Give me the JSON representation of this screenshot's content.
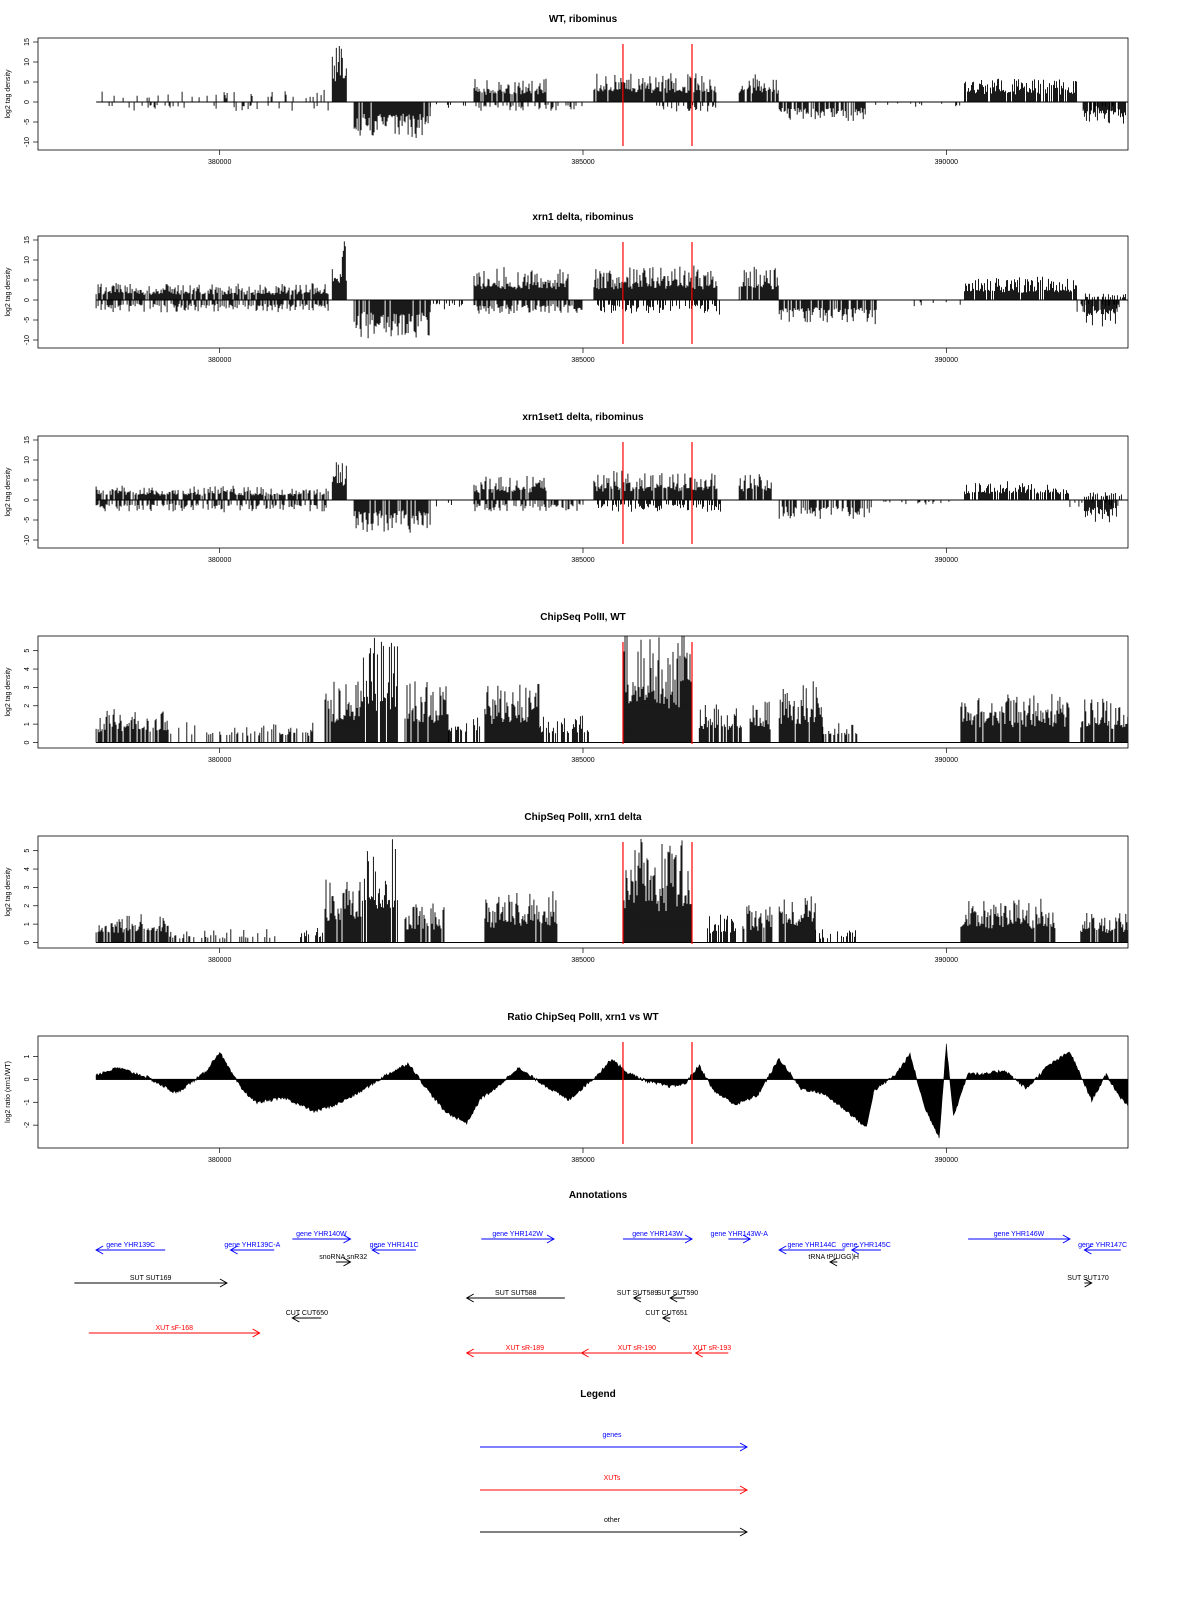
{
  "chart_data": [
    {
      "type": "bar",
      "title": "WT, ribominus",
      "ylabel": "log2 tag density",
      "ylim": [
        -12,
        16
      ],
      "yticks": [
        -10,
        -5,
        0,
        5,
        10,
        15
      ],
      "xlim": [
        377500,
        392500
      ],
      "xticks": [
        380000,
        385000,
        390000
      ],
      "markers_x": [
        385550,
        386500
      ],
      "marker_color": "#ff0000",
      "baseline": 0,
      "segments": [
        {
          "from": 378300,
          "to": 381500,
          "dir": 1,
          "level": 2.5,
          "density": 0.18
        },
        {
          "from": 378300,
          "to": 381500,
          "dir": -1,
          "level": 2,
          "density": 0.12
        },
        {
          "from": 381550,
          "to": 381750,
          "dir": 1,
          "level": 12,
          "density": 1
        },
        {
          "from": 381850,
          "to": 382900,
          "dir": -1,
          "level": 8,
          "density": 0.9
        },
        {
          "from": 382900,
          "to": 383400,
          "dir": -1,
          "level": 1.5,
          "density": 0.1
        },
        {
          "from": 383500,
          "to": 384500,
          "dir": 1,
          "level": 5,
          "density": 0.9
        },
        {
          "from": 383500,
          "to": 385000,
          "dir": -1,
          "level": 2,
          "density": 0.3
        },
        {
          "from": 385150,
          "to": 386850,
          "dir": 1,
          "level": 6,
          "density": 0.95
        },
        {
          "from": 386000,
          "to": 386900,
          "dir": -1,
          "level": 2,
          "density": 0.3
        },
        {
          "from": 387150,
          "to": 387700,
          "dir": 1,
          "level": 6,
          "density": 0.9
        },
        {
          "from": 387700,
          "to": 388900,
          "dir": -1,
          "level": 4,
          "density": 0.7
        },
        {
          "from": 389000,
          "to": 390200,
          "dir": -1,
          "level": 1,
          "density": 0.1
        },
        {
          "from": 390250,
          "to": 391800,
          "dir": 1,
          "level": 5,
          "density": 0.9
        },
        {
          "from": 391800,
          "to": 392400,
          "dir": -1,
          "level": 2,
          "density": 0.3
        },
        {
          "from": 392500,
          "to": 392300,
          "dir": -1,
          "level": 5,
          "density": 0.9
        },
        {
          "from": 391900,
          "to": 392300,
          "dir": -1,
          "level": 5,
          "density": 0.9
        }
      ]
    },
    {
      "type": "bar",
      "title": "xrn1 delta, ribominus",
      "ylabel": "log2 tag density",
      "ylim": [
        -12,
        16
      ],
      "yticks": [
        -10,
        -5,
        0,
        5,
        10,
        15
      ],
      "xlim": [
        377500,
        392500
      ],
      "xticks": [
        380000,
        385000,
        390000
      ],
      "markers_x": [
        385550,
        386500
      ],
      "marker_color": "#ff0000",
      "baseline": 0,
      "segments": [
        {
          "from": 378300,
          "to": 381500,
          "dir": 1,
          "level": 3.5,
          "density": 0.9
        },
        {
          "from": 378300,
          "to": 381500,
          "dir": -1,
          "level": 2.5,
          "density": 0.6
        },
        {
          "from": 381550,
          "to": 381750,
          "dir": 1,
          "level": 12,
          "density": 1
        },
        {
          "from": 381850,
          "to": 382900,
          "dir": -1,
          "level": 8,
          "density": 0.9
        },
        {
          "from": 382900,
          "to": 383400,
          "dir": -1,
          "level": 2,
          "density": 0.4
        },
        {
          "from": 383500,
          "to": 384800,
          "dir": 1,
          "level": 7,
          "density": 1
        },
        {
          "from": 383500,
          "to": 385000,
          "dir": -1,
          "level": 3,
          "density": 0.7
        },
        {
          "from": 385150,
          "to": 386850,
          "dir": 1,
          "level": 7,
          "density": 1
        },
        {
          "from": 385200,
          "to": 386900,
          "dir": -1,
          "level": 3,
          "density": 0.6
        },
        {
          "from": 387150,
          "to": 387700,
          "dir": 1,
          "level": 7,
          "density": 0.95
        },
        {
          "from": 387700,
          "to": 389100,
          "dir": -1,
          "level": 5,
          "density": 0.8
        },
        {
          "from": 389200,
          "to": 390200,
          "dir": -1,
          "level": 1.5,
          "density": 0.15
        },
        {
          "from": 390250,
          "to": 391800,
          "dir": 1,
          "level": 5,
          "density": 0.95
        },
        {
          "from": 391800,
          "to": 392400,
          "dir": -1,
          "level": 2.5,
          "density": 0.5
        },
        {
          "from": 391900,
          "to": 392350,
          "dir": -1,
          "level": 6,
          "density": 0.95
        },
        {
          "from": 391900,
          "to": 392500,
          "dir": 1,
          "level": 1.5,
          "density": 0.5
        }
      ]
    },
    {
      "type": "bar",
      "title": "xrn1set1 delta, ribominus",
      "ylabel": "log2 tag density",
      "ylim": [
        -12,
        16
      ],
      "yticks": [
        -10,
        -5,
        0,
        5,
        10,
        15
      ],
      "xlim": [
        377500,
        392500
      ],
      "xticks": [
        380000,
        385000,
        390000
      ],
      "markers_x": [
        385550,
        386500
      ],
      "marker_color": "#ff0000",
      "baseline": 0,
      "segments": [
        {
          "from": 378300,
          "to": 381500,
          "dir": 1,
          "level": 3,
          "density": 0.75
        },
        {
          "from": 378300,
          "to": 381500,
          "dir": -1,
          "level": 2.5,
          "density": 0.5
        },
        {
          "from": 381550,
          "to": 381750,
          "dir": 1,
          "level": 8,
          "density": 1
        },
        {
          "from": 381850,
          "to": 382900,
          "dir": -1,
          "level": 7,
          "density": 0.85
        },
        {
          "from": 382900,
          "to": 383400,
          "dir": -1,
          "level": 1.5,
          "density": 0.15
        },
        {
          "from": 383500,
          "to": 384500,
          "dir": 1,
          "level": 5,
          "density": 0.9
        },
        {
          "from": 383500,
          "to": 385000,
          "dir": -1,
          "level": 2.5,
          "density": 0.5
        },
        {
          "from": 385150,
          "to": 386850,
          "dir": 1,
          "level": 6,
          "density": 0.95
        },
        {
          "from": 385200,
          "to": 386900,
          "dir": -1,
          "level": 2.5,
          "density": 0.5
        },
        {
          "from": 387150,
          "to": 387600,
          "dir": 1,
          "level": 6,
          "density": 0.9
        },
        {
          "from": 387700,
          "to": 389000,
          "dir": -1,
          "level": 4,
          "density": 0.6
        },
        {
          "from": 389100,
          "to": 390200,
          "dir": -1,
          "level": 1.2,
          "density": 0.12
        },
        {
          "from": 390250,
          "to": 391700,
          "dir": 1,
          "level": 4,
          "density": 0.8
        },
        {
          "from": 391700,
          "to": 392400,
          "dir": -1,
          "level": 1.5,
          "density": 0.3
        },
        {
          "from": 391900,
          "to": 392350,
          "dir": -1,
          "level": 5,
          "density": 0.9
        },
        {
          "from": 391900,
          "to": 392500,
          "dir": 1,
          "level": 2,
          "density": 0.5
        }
      ]
    },
    {
      "type": "bar",
      "title": "ChipSeq PolII, WT",
      "ylabel": "log2 tag density",
      "ylim": [
        -0.3,
        5.8
      ],
      "yticks": [
        0,
        1,
        2,
        3,
        4,
        5
      ],
      "xlim": [
        377500,
        392500
      ],
      "xticks": [
        380000,
        385000,
        390000
      ],
      "markers_x": [
        385550,
        386500
      ],
      "marker_color": "#ff0000",
      "baseline": 0,
      "segments": [
        {
          "from": 378300,
          "to": 379300,
          "dir": 1,
          "level": 1.5,
          "density": 0.8
        },
        {
          "from": 379300,
          "to": 380800,
          "dir": 1,
          "level": 1,
          "density": 0.3
        },
        {
          "from": 380800,
          "to": 381300,
          "dir": 1,
          "level": 1,
          "density": 0.5
        },
        {
          "from": 381450,
          "to": 381950,
          "dir": 1,
          "level": 3,
          "density": 0.95
        },
        {
          "from": 381950,
          "to": 382450,
          "dir": 1,
          "level": 4.8,
          "density": 0.85
        },
        {
          "from": 382550,
          "to": 383150,
          "dir": 1,
          "level": 2.8,
          "density": 0.95
        },
        {
          "from": 383150,
          "to": 383600,
          "dir": 1,
          "level": 1.2,
          "density": 0.6
        },
        {
          "from": 383650,
          "to": 384400,
          "dir": 1,
          "level": 2.8,
          "density": 0.95
        },
        {
          "from": 384400,
          "to": 385100,
          "dir": 1,
          "level": 1.3,
          "density": 0.6
        },
        {
          "from": 385550,
          "to": 386500,
          "dir": 1,
          "level": 5.2,
          "density": 1
        },
        {
          "from": 386600,
          "to": 387200,
          "dir": 1,
          "level": 1.8,
          "density": 0.8
        },
        {
          "from": 387300,
          "to": 387600,
          "dir": 1,
          "level": 2,
          "density": 0.8
        },
        {
          "from": 387700,
          "to": 388300,
          "dir": 1,
          "level": 2.8,
          "density": 0.95
        },
        {
          "from": 388300,
          "to": 388800,
          "dir": 1,
          "level": 1,
          "density": 0.5
        },
        {
          "from": 390200,
          "to": 391700,
          "dir": 1,
          "level": 2.3,
          "density": 0.95
        },
        {
          "from": 391850,
          "to": 392500,
          "dir": 1,
          "level": 2,
          "density": 0.9
        }
      ]
    },
    {
      "type": "bar",
      "title": "ChipSeq PolII, xrn1 delta",
      "ylabel": "log2 tag density",
      "ylim": [
        -0.3,
        5.8
      ],
      "yticks": [
        0,
        1,
        2,
        3,
        4,
        5
      ],
      "xlim": [
        377500,
        392500
      ],
      "xticks": [
        380000,
        385000,
        390000
      ],
      "markers_x": [
        385550,
        386500
      ],
      "marker_color": "#ff0000",
      "baseline": 0,
      "segments": [
        {
          "from": 378300,
          "to": 379300,
          "dir": 1,
          "level": 1.3,
          "density": 0.8
        },
        {
          "from": 379300,
          "to": 380800,
          "dir": 1,
          "level": 0.6,
          "density": 0.3
        },
        {
          "from": 381100,
          "to": 381450,
          "dir": 1,
          "level": 0.8,
          "density": 0.5
        },
        {
          "from": 381450,
          "to": 381950,
          "dir": 1,
          "level": 3,
          "density": 0.95
        },
        {
          "from": 381950,
          "to": 382450,
          "dir": 1,
          "level": 4.6,
          "density": 0.85
        },
        {
          "from": 382550,
          "to": 383100,
          "dir": 1,
          "level": 1.8,
          "density": 0.9
        },
        {
          "from": 383650,
          "to": 384650,
          "dir": 1,
          "level": 2.3,
          "density": 0.95
        },
        {
          "from": 385550,
          "to": 386500,
          "dir": 1,
          "level": 4.8,
          "density": 1
        },
        {
          "from": 386700,
          "to": 387100,
          "dir": 1,
          "level": 1.3,
          "density": 0.8
        },
        {
          "from": 387200,
          "to": 387600,
          "dir": 1,
          "level": 1.8,
          "density": 0.9
        },
        {
          "from": 387700,
          "to": 388200,
          "dir": 1,
          "level": 2.3,
          "density": 0.95
        },
        {
          "from": 388200,
          "to": 388800,
          "dir": 1,
          "level": 0.6,
          "density": 0.4
        },
        {
          "from": 390200,
          "to": 391500,
          "dir": 1,
          "level": 2,
          "density": 0.95
        },
        {
          "from": 391850,
          "to": 392500,
          "dir": 1,
          "level": 1.4,
          "density": 0.9
        }
      ]
    },
    {
      "type": "area",
      "title": "Ratio ChipSeq PolII, xrn1 vs WT",
      "ylabel": "log2 ratio (xrn1/WT)",
      "ylim": [
        -3,
        1.9
      ],
      "yticks": [
        -2,
        -1,
        0,
        1
      ],
      "xlim": [
        377500,
        392500
      ],
      "xticks": [
        380000,
        385000,
        390000
      ],
      "markers_x": [
        385550,
        386500
      ],
      "marker_color": "#ff0000",
      "baseline": 0,
      "x": [
        378300,
        378600,
        379000,
        379400,
        379800,
        380000,
        380100,
        380300,
        380500,
        380900,
        381300,
        381600,
        381900,
        382300,
        382600,
        382800,
        383100,
        383400,
        383600,
        383800,
        384100,
        384500,
        384800,
        385200,
        385400,
        385600,
        385900,
        386200,
        386400,
        386600,
        386800,
        387100,
        387400,
        387700,
        388000,
        388300,
        388600,
        388900,
        389000,
        389300,
        389500,
        389700,
        389900,
        390000,
        390100,
        390300,
        390500,
        390800,
        391100,
        391400,
        391700,
        392000,
        392200,
        392400,
        392500
      ],
      "y": [
        0.2,
        0.5,
        0.1,
        -0.6,
        0.3,
        1.2,
        0.6,
        -0.4,
        -1,
        -0.8,
        -1.4,
        -1.1,
        -0.6,
        0.2,
        0.7,
        -0.2,
        -1.4,
        -1.9,
        -0.8,
        -0.4,
        0.5,
        -0.3,
        -0.9,
        0.2,
        0.9,
        0.3,
        -0.1,
        -0.3,
        -0.2,
        0.6,
        -0.5,
        -1.1,
        -0.7,
        0.9,
        -0.4,
        -0.6,
        -1.3,
        -2.1,
        -0.5,
        0.2,
        1.1,
        -1.2,
        -2.5,
        1.5,
        -1.6,
        0.3,
        0.2,
        0.4,
        -0.4,
        0.6,
        1.2,
        -0.9,
        0.2,
        -0.8,
        -1.1
      ]
    }
  ],
  "annotations": {
    "title": "Annotations",
    "colors": {
      "genes": "#0000ff",
      "xuts": "#ff0000",
      "other": "#000000"
    },
    "features": [
      {
        "label": "gene YHR139C",
        "kind": "genes",
        "from": 379250,
        "to": 378300,
        "row": 0
      },
      {
        "label": "gene YHR139C-A",
        "kind": "genes",
        "from": 380750,
        "to": 380150,
        "row": 0
      },
      {
        "label": "gene YHR140W",
        "kind": "genes",
        "from": 381000,
        "to": 381800,
        "row": -1
      },
      {
        "label": "gene YHR141C",
        "kind": "genes",
        "from": 382700,
        "to": 382100,
        "row": 0
      },
      {
        "label": "gene YHR142W",
        "kind": "genes",
        "from": 383600,
        "to": 384600,
        "row": -1
      },
      {
        "label": "gene YHR143W",
        "kind": "genes",
        "from": 385550,
        "to": 386500,
        "row": -1
      },
      {
        "label": "gene YHR143W-A",
        "kind": "genes",
        "from": 387000,
        "to": 387300,
        "row": -1
      },
      {
        "label": "gene YHR144C",
        "kind": "genes",
        "from": 388600,
        "to": 387700,
        "row": 0
      },
      {
        "label": "gene YHR145C",
        "kind": "genes",
        "from": 389100,
        "to": 388700,
        "row": 0
      },
      {
        "label": "gene YHR146W",
        "kind": "genes",
        "from": 390300,
        "to": 391700,
        "row": -1
      },
      {
        "label": "gene YHR147C",
        "kind": "genes",
        "from": 392400,
        "to": 391900,
        "row": 0
      },
      {
        "label": "snoRNA snR32",
        "kind": "other",
        "from": 381600,
        "to": 381800,
        "row": 1
      },
      {
        "label": "tRNA tP(UGG)H",
        "kind": "other",
        "from": 388500,
        "to": 388400,
        "row": 1
      },
      {
        "label": "SUT SUT169",
        "kind": "other",
        "from": 378000,
        "to": 380100,
        "row": 2
      },
      {
        "label": "SUT SUT588",
        "kind": "other",
        "from": 384750,
        "to": 383400,
        "row": 3
      },
      {
        "label": "SUT SUT589",
        "kind": "other",
        "from": 385800,
        "to": 385700,
        "row": 3
      },
      {
        "label": "SUT SUT590",
        "kind": "other",
        "from": 386400,
        "to": 386200,
        "row": 3
      },
      {
        "label": "SUT SUT170",
        "kind": "other",
        "from": 391900,
        "to": 392000,
        "row": 2
      },
      {
        "label": "CUT CUT650",
        "kind": "other",
        "from": 381400,
        "to": 381000,
        "row": 4
      },
      {
        "label": "CUT CUT651",
        "kind": "other",
        "from": 386200,
        "to": 386100,
        "row": 4
      },
      {
        "label": "XUT sF-168",
        "kind": "xuts",
        "from": 378200,
        "to": 380550,
        "row": 5
      },
      {
        "label": "XUT sR-189",
        "kind": "xuts",
        "from": 385000,
        "to": 383400,
        "row": 6
      },
      {
        "label": "XUT sR-190",
        "kind": "xuts",
        "from": 386500,
        "to": 384980,
        "row": 6
      },
      {
        "label": "XUT sR-193",
        "kind": "xuts",
        "from": 387000,
        "to": 386550,
        "row": 6
      }
    ]
  },
  "legend": {
    "title": "Legend",
    "items": [
      {
        "label": "genes",
        "kind": "genes"
      },
      {
        "label": "XUTs",
        "kind": "xuts"
      },
      {
        "label": "other",
        "kind": "other"
      }
    ]
  }
}
